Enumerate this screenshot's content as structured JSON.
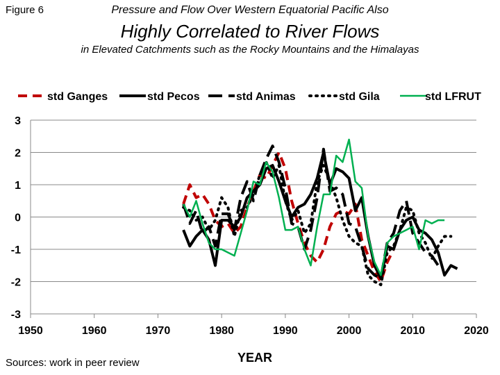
{
  "header": {
    "figure_label": "Figure 6",
    "title_line1": "Pressure and Flow Over Western Equatorial Pacific Also",
    "title_line2": "Highly Correlated to River Flows",
    "title_line3": "in Elevated Catchments such as the Rocky Mountains and the Himalayas"
  },
  "footer": {
    "source": "Sources: work in peer review"
  },
  "chart_data": {
    "type": "line",
    "title": "",
    "xlabel": "YEAR",
    "ylabel": "",
    "xlim": [
      1950,
      2020
    ],
    "ylim": [
      -3,
      3
    ],
    "xticks": [
      1950,
      1960,
      1970,
      1980,
      1990,
      2000,
      2010,
      2020
    ],
    "yticks": [
      -3,
      -2,
      -1,
      0,
      1,
      2,
      3
    ],
    "grid": "horizontal",
    "legend_position": "top",
    "series": [
      {
        "name": "std Ganges",
        "color": "#c00000",
        "style": "dashed",
        "points": [
          [
            1974,
            0.4
          ],
          [
            1975,
            1.0
          ],
          [
            1976,
            0.6
          ],
          [
            1977,
            0.7
          ],
          [
            1978,
            0.4
          ],
          [
            1979,
            -0.1
          ],
          [
            1980,
            -0.3
          ],
          [
            1981,
            -0.2
          ],
          [
            1982,
            -0.5
          ],
          [
            1983,
            -0.3
          ],
          [
            1984,
            0.3
          ],
          [
            1985,
            0.8
          ],
          [
            1986,
            1.3
          ],
          [
            1987,
            1.2
          ],
          [
            1988,
            1.6
          ],
          [
            1989,
            2.0
          ],
          [
            1990,
            1.5
          ],
          [
            1991,
            0.5
          ],
          [
            1992,
            -0.2
          ],
          [
            1993,
            -0.8
          ],
          [
            1994,
            -1.2
          ],
          [
            1995,
            -1.4
          ],
          [
            1996,
            -1.0
          ],
          [
            1997,
            -0.3
          ],
          [
            1998,
            0.1
          ],
          [
            1999,
            0.2
          ],
          [
            2000,
            0.1
          ],
          [
            2001,
            0.4
          ],
          [
            2002,
            -0.7
          ],
          [
            2003,
            -1.2
          ],
          [
            2004,
            -1.7
          ],
          [
            2005,
            -2.0
          ],
          [
            2006,
            -1.4
          ],
          [
            2007,
            -1.0
          ]
        ]
      },
      {
        "name": "std Pecos",
        "color": "#000000",
        "style": "solid",
        "points": [
          [
            1974,
            -0.4
          ],
          [
            1975,
            -0.9
          ],
          [
            1976,
            -0.6
          ],
          [
            1977,
            -0.4
          ],
          [
            1978,
            -0.7
          ],
          [
            1979,
            -1.5
          ],
          [
            1980,
            -0.1
          ],
          [
            1981,
            -0.1
          ],
          [
            1982,
            -0.3
          ],
          [
            1983,
            0.0
          ],
          [
            1984,
            0.6
          ],
          [
            1985,
            0.8
          ],
          [
            1986,
            1.0
          ],
          [
            1987,
            1.5
          ],
          [
            1988,
            1.6
          ],
          [
            1989,
            1.1
          ],
          [
            1990,
            0.5
          ],
          [
            1991,
            0.0
          ],
          [
            1992,
            0.3
          ],
          [
            1993,
            0.4
          ],
          [
            1994,
            0.7
          ],
          [
            1995,
            1.2
          ],
          [
            1996,
            2.0
          ],
          [
            1997,
            1.0
          ],
          [
            1998,
            1.5
          ],
          [
            1999,
            1.4
          ],
          [
            2000,
            1.2
          ],
          [
            2001,
            0.2
          ],
          [
            2002,
            0.6
          ],
          [
            2003,
            -0.6
          ],
          [
            2004,
            -1.5
          ],
          [
            2005,
            -1.9
          ],
          [
            2006,
            -0.9
          ],
          [
            2007,
            -1.0
          ],
          [
            2008,
            -0.4
          ],
          [
            2009,
            -0.1
          ],
          [
            2010,
            0.0
          ],
          [
            2011,
            -0.4
          ],
          [
            2012,
            -0.5
          ],
          [
            2013,
            -0.7
          ],
          [
            2014,
            -1.1
          ],
          [
            2015,
            -1.8
          ],
          [
            2016,
            -1.5
          ],
          [
            2017,
            -1.6
          ]
        ]
      },
      {
        "name": "std Animas",
        "color": "#000000",
        "style": "longdash",
        "points": [
          [
            1974,
            0.4
          ],
          [
            1975,
            -0.2
          ],
          [
            1976,
            0.2
          ],
          [
            1977,
            -0.5
          ],
          [
            1978,
            -0.3
          ],
          [
            1979,
            -0.9
          ],
          [
            1980,
            0.1
          ],
          [
            1981,
            0.1
          ],
          [
            1982,
            -0.4
          ],
          [
            1983,
            0.6
          ],
          [
            1984,
            1.1
          ],
          [
            1985,
            0.5
          ],
          [
            1986,
            1.3
          ],
          [
            1987,
            1.8
          ],
          [
            1988,
            2.2
          ],
          [
            1989,
            1.7
          ],
          [
            1990,
            0.9
          ],
          [
            1991,
            -0.2
          ],
          [
            1992,
            -0.3
          ],
          [
            1993,
            -1.0
          ],
          [
            1994,
            -0.4
          ],
          [
            1995,
            0.6
          ],
          [
            1996,
            2.1
          ],
          [
            1997,
            0.8
          ],
          [
            1998,
            0.9
          ],
          [
            1999,
            0.7
          ],
          [
            2000,
            -0.2
          ],
          [
            2001,
            -0.3
          ],
          [
            2002,
            -0.9
          ],
          [
            2003,
            -1.6
          ],
          [
            2004,
            -1.8
          ],
          [
            2005,
            -1.9
          ],
          [
            2006,
            -0.8
          ],
          [
            2007,
            -0.5
          ],
          [
            2008,
            0.2
          ],
          [
            2009,
            0.5
          ],
          [
            2010,
            -0.5
          ],
          [
            2011,
            -0.8
          ],
          [
            2012,
            -1.1
          ],
          [
            2013,
            -1.2
          ],
          [
            2014,
            -1.5
          ]
        ]
      },
      {
        "name": "std Gila",
        "color": "#000000",
        "style": "dotted",
        "points": [
          [
            1974,
            0.3
          ],
          [
            1975,
            0.2
          ],
          [
            1976,
            -0.1
          ],
          [
            1977,
            0.0
          ],
          [
            1978,
            -0.4
          ],
          [
            1979,
            -0.1
          ],
          [
            1980,
            0.6
          ],
          [
            1981,
            0.3
          ],
          [
            1982,
            -0.6
          ],
          [
            1983,
            0.2
          ],
          [
            1984,
            0.3
          ],
          [
            1985,
            0.7
          ],
          [
            1986,
            1.3
          ],
          [
            1987,
            1.7
          ],
          [
            1988,
            1.2
          ],
          [
            1989,
            1.6
          ],
          [
            1990,
            0.5
          ],
          [
            1991,
            -0.1
          ],
          [
            1992,
            0.2
          ],
          [
            1993,
            -0.5
          ],
          [
            1994,
            -0.2
          ],
          [
            1995,
            1.1
          ],
          [
            1996,
            1.6
          ],
          [
            1997,
            1.1
          ],
          [
            1998,
            0.6
          ],
          [
            1999,
            -0.1
          ],
          [
            2000,
            -0.6
          ],
          [
            2001,
            -0.8
          ],
          [
            2002,
            -0.9
          ],
          [
            2003,
            -1.8
          ],
          [
            2004,
            -2.0
          ],
          [
            2005,
            -2.1
          ],
          [
            2006,
            -1.1
          ],
          [
            2007,
            -0.9
          ],
          [
            2008,
            -0.4
          ],
          [
            2009,
            0.3
          ],
          [
            2010,
            0.2
          ],
          [
            2011,
            -0.5
          ],
          [
            2012,
            -0.8
          ],
          [
            2013,
            -1.3
          ],
          [
            2014,
            -0.9
          ],
          [
            2015,
            -0.6
          ],
          [
            2016,
            -0.6
          ]
        ]
      },
      {
        "name": "std LFRUT",
        "color": "#00b050",
        "style": "solid",
        "points": [
          [
            1974,
            0.4
          ],
          [
            1975,
            0.0
          ],
          [
            1976,
            0.5
          ],
          [
            1977,
            -0.2
          ],
          [
            1978,
            -0.8
          ],
          [
            1979,
            -1.0
          ],
          [
            1980,
            -1.0
          ],
          [
            1981,
            -1.1
          ],
          [
            1982,
            -1.2
          ],
          [
            1983,
            -0.5
          ],
          [
            1984,
            0.2
          ],
          [
            1985,
            1.1
          ],
          [
            1986,
            1.0
          ],
          [
            1987,
            1.7
          ],
          [
            1988,
            1.4
          ],
          [
            1989,
            0.6
          ],
          [
            1990,
            -0.4
          ],
          [
            1991,
            -0.4
          ],
          [
            1992,
            -0.3
          ],
          [
            1993,
            -1.0
          ],
          [
            1994,
            -1.5
          ],
          [
            1995,
            -0.3
          ],
          [
            1996,
            0.7
          ],
          [
            1997,
            0.7
          ],
          [
            1998,
            1.9
          ],
          [
            1999,
            1.7
          ],
          [
            2000,
            2.4
          ],
          [
            2001,
            1.1
          ],
          [
            2002,
            0.9
          ],
          [
            2003,
            -0.6
          ],
          [
            2004,
            -1.4
          ],
          [
            2005,
            -1.8
          ],
          [
            2006,
            -0.8
          ],
          [
            2007,
            -0.6
          ],
          [
            2008,
            -0.5
          ],
          [
            2009,
            -0.4
          ],
          [
            2010,
            -0.3
          ],
          [
            2011,
            -1.0
          ],
          [
            2012,
            -0.1
          ],
          [
            2013,
            -0.2
          ],
          [
            2014,
            -0.1
          ],
          [
            2015,
            -0.1
          ]
        ]
      }
    ]
  }
}
